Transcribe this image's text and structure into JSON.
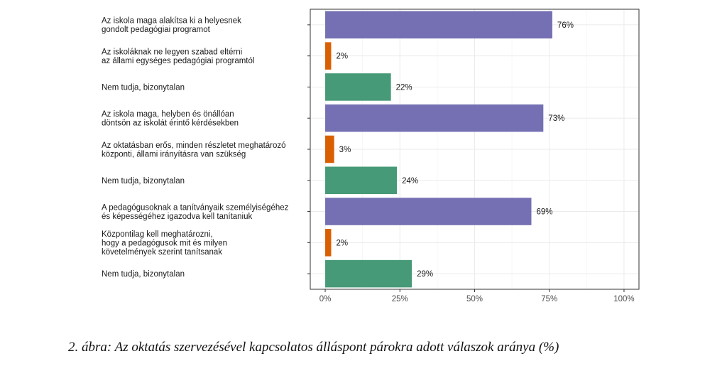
{
  "chart_data": {
    "type": "bar",
    "orientation": "horizontal",
    "categories": [
      [
        "Az iskola maga alakítsa ki a helyesnek",
        "gondolt pedagógiai programot"
      ],
      [
        "Az iskoláknak ne legyen szabad eltérni",
        "az állami egységes pedagógiai programtól"
      ],
      [
        "Nem tudja, bizonytalan"
      ],
      [
        "Az iskola maga, helyben és önállóan",
        "döntsön az iskolát érintő kérdésekben"
      ],
      [
        "Az oktatásban erős, minden részletet meghatározó",
        "központi, állami irányításra van szükség"
      ],
      [
        "Nem tudja, bizonytalan"
      ],
      [
        "A pedagógusoknak a tanítványaik személyiségéhez",
        "és képességéhez igazodva kell tanítaniuk"
      ],
      [
        "Központilag kell meghatározni,",
        "hogy a pedagógusok mit és milyen",
        "követelmények szerint tanítsanak"
      ],
      [
        "Nem tudja, bizonytalan"
      ]
    ],
    "values": [
      76,
      2,
      22,
      73,
      3,
      24,
      69,
      2,
      29
    ],
    "value_labels": [
      "76%",
      "2%",
      "22%",
      "73%",
      "3%",
      "24%",
      "69%",
      "2%",
      "29%"
    ],
    "bar_colors": [
      "#7570b3",
      "#d95f02",
      "#479a77",
      "#7570b3",
      "#d95f02",
      "#479a77",
      "#7570b3",
      "#d95f02",
      "#479a77"
    ],
    "x_ticks": [
      0,
      25,
      50,
      75,
      100
    ],
    "x_tick_labels": [
      "0%",
      "25%",
      "50%",
      "75%",
      "100%"
    ],
    "xlim": [
      -5,
      105
    ],
    "grid": true,
    "title": "",
    "xlabel": "",
    "ylabel": ""
  },
  "caption": "2. ábra: Az oktatás szervezésével kapcsolatos álláspont párokra adott válaszok aránya (%)"
}
